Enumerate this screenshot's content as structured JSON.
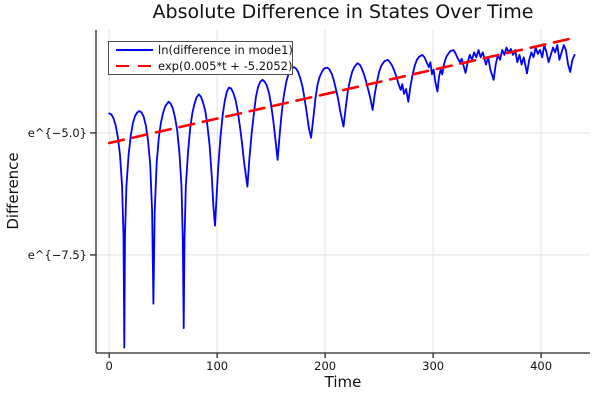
{
  "chart_data": {
    "type": "line",
    "title": "Absolute Difference in States Over Time",
    "xlabel": "Time",
    "ylabel": "Difference",
    "yscale": "ln",
    "xlim": [
      -12.2,
      445.3
    ],
    "ylim": [
      -9.51,
      -2.89
    ],
    "xticks": {
      "values": [
        0,
        100,
        200,
        300,
        400
      ],
      "labels": [
        "0",
        "100",
        "200",
        "300",
        "400"
      ]
    },
    "yticks": {
      "values": [
        -5.0,
        -7.5
      ],
      "labels": [
        "e^{−5.0}",
        "e^{−7.5}"
      ]
    },
    "grid": true,
    "grid_color": "#e3e3e3",
    "axis_color": "#262626",
    "text_color": "#111111",
    "background": "#ffffff",
    "legend": {
      "position": "top-left",
      "border_color": "#4c4c4c",
      "background": "#ffffff"
    },
    "series": [
      {
        "name": "ln(difference in mode1)",
        "color": "#0000ff",
        "style": "solid",
        "stroke_width": 1.8,
        "points": [
          [
            0,
            -4.6
          ],
          [
            2,
            -4.62
          ],
          [
            4,
            -4.7
          ],
          [
            6,
            -4.85
          ],
          [
            8,
            -5.08
          ],
          [
            10,
            -5.45
          ],
          [
            12,
            -6.1
          ],
          [
            13.3,
            -7.1
          ],
          [
            14,
            -9.4
          ],
          [
            14.7,
            -7.1
          ],
          [
            16,
            -6.1
          ],
          [
            18,
            -5.45
          ],
          [
            20,
            -5.05
          ],
          [
            22,
            -4.8
          ],
          [
            24,
            -4.65
          ],
          [
            26,
            -4.58
          ],
          [
            28,
            -4.55
          ],
          [
            30,
            -4.58
          ],
          [
            32,
            -4.67
          ],
          [
            34,
            -4.85
          ],
          [
            36,
            -5.15
          ],
          [
            38,
            -5.65
          ],
          [
            39.8,
            -6.6
          ],
          [
            41,
            -8.5
          ],
          [
            42.2,
            -6.6
          ],
          [
            44,
            -5.6
          ],
          [
            46,
            -5.1
          ],
          [
            48,
            -4.78
          ],
          [
            50,
            -4.58
          ],
          [
            52,
            -4.45
          ],
          [
            55,
            -4.36
          ],
          [
            57,
            -4.4
          ],
          [
            59,
            -4.5
          ],
          [
            61,
            -4.68
          ],
          [
            63,
            -4.95
          ],
          [
            65,
            -5.4
          ],
          [
            67,
            -6.1
          ],
          [
            68.2,
            -7.2
          ],
          [
            69,
            -9.0
          ],
          [
            69.8,
            -7.2
          ],
          [
            71,
            -6.1
          ],
          [
            73,
            -5.4
          ],
          [
            75,
            -4.9
          ],
          [
            77,
            -4.6
          ],
          [
            79,
            -4.4
          ],
          [
            81,
            -4.27
          ],
          [
            83,
            -4.21
          ],
          [
            85,
            -4.26
          ],
          [
            87,
            -4.38
          ],
          [
            89,
            -4.55
          ],
          [
            91,
            -4.85
          ],
          [
            93,
            -5.25
          ],
          [
            95,
            -5.9
          ],
          [
            96.5,
            -6.5
          ],
          [
            98,
            -6.9
          ],
          [
            99.5,
            -6.3
          ],
          [
            101,
            -5.7
          ],
          [
            103,
            -5.1
          ],
          [
            105,
            -4.65
          ],
          [
            107,
            -4.35
          ],
          [
            109,
            -4.15
          ],
          [
            111,
            -4.07
          ],
          [
            113,
            -4.09
          ],
          [
            115,
            -4.18
          ],
          [
            117,
            -4.32
          ],
          [
            119,
            -4.55
          ],
          [
            121,
            -4.85
          ],
          [
            123,
            -5.2
          ],
          [
            125,
            -5.6
          ],
          [
            128,
            -6.1
          ],
          [
            130,
            -5.5
          ],
          [
            132,
            -5.0
          ],
          [
            134,
            -4.6
          ],
          [
            136,
            -4.25
          ],
          [
            138,
            -4.05
          ],
          [
            140,
            -3.95
          ],
          [
            142,
            -3.91
          ],
          [
            144,
            -3.95
          ],
          [
            146,
            -4.03
          ],
          [
            148,
            -4.18
          ],
          [
            150,
            -4.42
          ],
          [
            152,
            -4.75
          ],
          [
            154,
            -5.15
          ],
          [
            156,
            -5.55
          ],
          [
            158,
            -5.0
          ],
          [
            160,
            -4.55
          ],
          [
            162,
            -4.2
          ],
          [
            164,
            -3.95
          ],
          [
            166,
            -3.8
          ],
          [
            168,
            -3.7
          ],
          [
            171,
            -3.65
          ],
          [
            173,
            -3.68
          ],
          [
            175,
            -3.75
          ],
          [
            177,
            -3.88
          ],
          [
            179,
            -4.05
          ],
          [
            181,
            -4.3
          ],
          [
            183,
            -4.6
          ],
          [
            185,
            -4.9
          ],
          [
            187,
            -5.1
          ],
          [
            189,
            -4.7
          ],
          [
            191,
            -4.3
          ],
          [
            193,
            -4.0
          ],
          [
            195,
            -3.85
          ],
          [
            197,
            -3.75
          ],
          [
            199,
            -3.68
          ],
          [
            202,
            -3.66
          ],
          [
            204,
            -3.7
          ],
          [
            206,
            -3.78
          ],
          [
            208,
            -3.92
          ],
          [
            210,
            -4.1
          ],
          [
            212,
            -4.3
          ],
          [
            214,
            -4.55
          ],
          [
            217,
            -4.87
          ],
          [
            219,
            -4.5
          ],
          [
            221,
            -4.15
          ],
          [
            223,
            -3.92
          ],
          [
            225,
            -3.75
          ],
          [
            227,
            -3.65
          ],
          [
            230,
            -3.57
          ],
          [
            232,
            -3.6
          ],
          [
            234,
            -3.68
          ],
          [
            236,
            -3.8
          ],
          [
            238,
            -3.95
          ],
          [
            240,
            -4.12
          ],
          [
            242,
            -4.3
          ],
          [
            244,
            -4.53
          ],
          [
            246,
            -4.2
          ],
          [
            248,
            -3.95
          ],
          [
            250,
            -3.75
          ],
          [
            252,
            -3.62
          ],
          [
            255,
            -3.53
          ],
          [
            258,
            -3.5
          ],
          [
            260,
            -3.55
          ],
          [
            262,
            -3.62
          ],
          [
            264,
            -3.72
          ],
          [
            266,
            -3.85
          ],
          [
            268,
            -4.0
          ],
          [
            270,
            -4.12
          ],
          [
            271.5,
            -4.0
          ],
          [
            273,
            -4.2
          ],
          [
            275,
            -4.1
          ],
          [
            277,
            -4.36
          ],
          [
            279,
            -4.05
          ],
          [
            281,
            -3.8
          ],
          [
            283,
            -3.62
          ],
          [
            285,
            -3.5
          ],
          [
            287,
            -3.44
          ],
          [
            290,
            -3.4
          ],
          [
            292,
            -3.45
          ],
          [
            294,
            -3.55
          ],
          [
            296,
            -3.65
          ],
          [
            297.5,
            -3.55
          ],
          [
            299,
            -3.8
          ],
          [
            300.5,
            -3.7
          ],
          [
            302,
            -3.95
          ],
          [
            304,
            -4.15
          ],
          [
            305.5,
            -3.85
          ],
          [
            307,
            -3.7
          ],
          [
            308.5,
            -3.8
          ],
          [
            310,
            -3.6
          ],
          [
            312,
            -3.45
          ],
          [
            314,
            -3.38
          ],
          [
            316,
            -3.32
          ],
          [
            319,
            -3.3
          ],
          [
            321,
            -3.38
          ],
          [
            323,
            -3.48
          ],
          [
            325,
            -3.55
          ],
          [
            326.5,
            -3.48
          ],
          [
            328,
            -3.6
          ],
          [
            330,
            -3.77
          ],
          [
            332,
            -3.55
          ],
          [
            334,
            -3.4
          ],
          [
            336,
            -3.5
          ],
          [
            338,
            -3.35
          ],
          [
            340,
            -3.45
          ],
          [
            342,
            -3.3
          ],
          [
            344,
            -3.45
          ],
          [
            346,
            -3.35
          ],
          [
            349,
            -3.6
          ],
          [
            351,
            -3.45
          ],
          [
            353,
            -3.7
          ],
          [
            356,
            -3.91
          ],
          [
            358,
            -3.6
          ],
          [
            360,
            -3.4
          ],
          [
            362,
            -3.5
          ],
          [
            364,
            -3.3
          ],
          [
            366,
            -3.4
          ],
          [
            368,
            -3.25
          ],
          [
            370,
            -3.35
          ],
          [
            372,
            -3.28
          ],
          [
            374,
            -3.4
          ],
          [
            376,
            -3.3
          ],
          [
            378,
            -3.55
          ],
          [
            380,
            -3.4
          ],
          [
            382,
            -3.6
          ],
          [
            384,
            -3.45
          ],
          [
            387,
            -3.78
          ],
          [
            389,
            -3.5
          ],
          [
            391,
            -3.35
          ],
          [
            393,
            -3.45
          ],
          [
            395,
            -3.25
          ],
          [
            397,
            -3.38
          ],
          [
            399,
            -3.3
          ],
          [
            401,
            -3.45
          ],
          [
            403,
            -3.2
          ],
          [
            405,
            -3.35
          ],
          [
            407,
            -3.55
          ],
          [
            409,
            -3.4
          ],
          [
            411,
            -3.25
          ],
          [
            413,
            -3.35
          ],
          [
            415,
            -3.2
          ],
          [
            417,
            -3.5
          ],
          [
            419,
            -3.35
          ],
          [
            421,
            -3.2
          ],
          [
            423,
            -3.3
          ],
          [
            425,
            -3.6
          ],
          [
            427,
            -3.75
          ],
          [
            429,
            -3.5
          ],
          [
            431,
            -3.4
          ]
        ]
      },
      {
        "name": "exp(0.005*t + -5.2052)",
        "color": "#ff0000",
        "style": "dashed",
        "stroke_width": 2.6,
        "dash": [
          15,
          9
        ],
        "model": {
          "slope": 0.005,
          "intercept": -5.2052
        },
        "points": [
          [
            0,
            -5.2052
          ],
          [
            433,
            -3.0402
          ]
        ]
      }
    ]
  }
}
